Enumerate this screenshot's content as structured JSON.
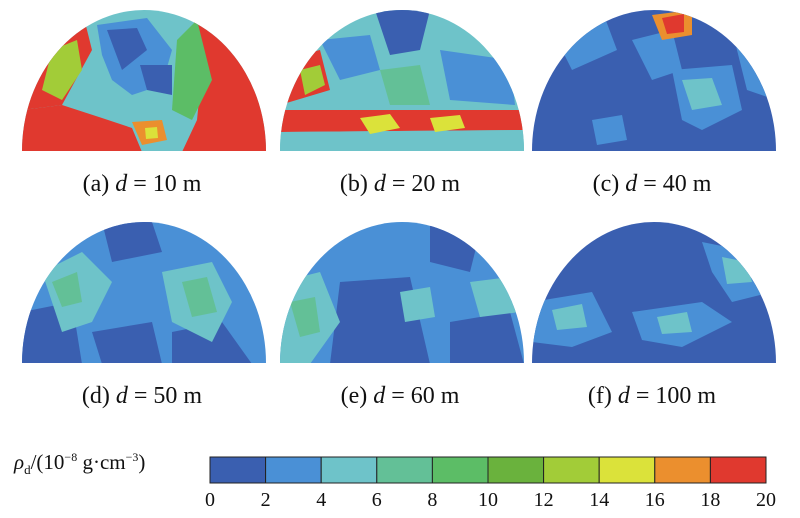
{
  "panels": [
    {
      "caption_prefix": "(a)",
      "var": "d",
      "caption_suffix": "= 10 m"
    },
    {
      "caption_prefix": "(b)",
      "var": "d",
      "caption_suffix": "= 20 m"
    },
    {
      "caption_prefix": "(c)",
      "var": "d",
      "caption_suffix": "= 40 m"
    },
    {
      "caption_prefix": "(d)",
      "var": "d",
      "caption_suffix": "= 50 m"
    },
    {
      "caption_prefix": "(e)",
      "var": "d",
      "caption_suffix": "= 60 m"
    },
    {
      "caption_prefix": "(f)",
      "var": "d",
      "caption_suffix": "= 100 m"
    }
  ],
  "legend": {
    "symbol": "ρ",
    "subscript": "d",
    "unit_open": "/(10",
    "exp1": "−8",
    "unit_mid": " g·cm",
    "exp2": "−3",
    "unit_close": ")",
    "ticks": [
      "0",
      "2",
      "4",
      "6",
      "8",
      "10",
      "12",
      "14",
      "16",
      "18",
      "20"
    ],
    "colors": [
      "#3a5fb0",
      "#4a90d6",
      "#6ec3c9",
      "#63c097",
      "#5cbd66",
      "#6ab23d",
      "#a2cc38",
      "#dbe23a",
      "#eb8f2e",
      "#e0392f"
    ]
  }
}
